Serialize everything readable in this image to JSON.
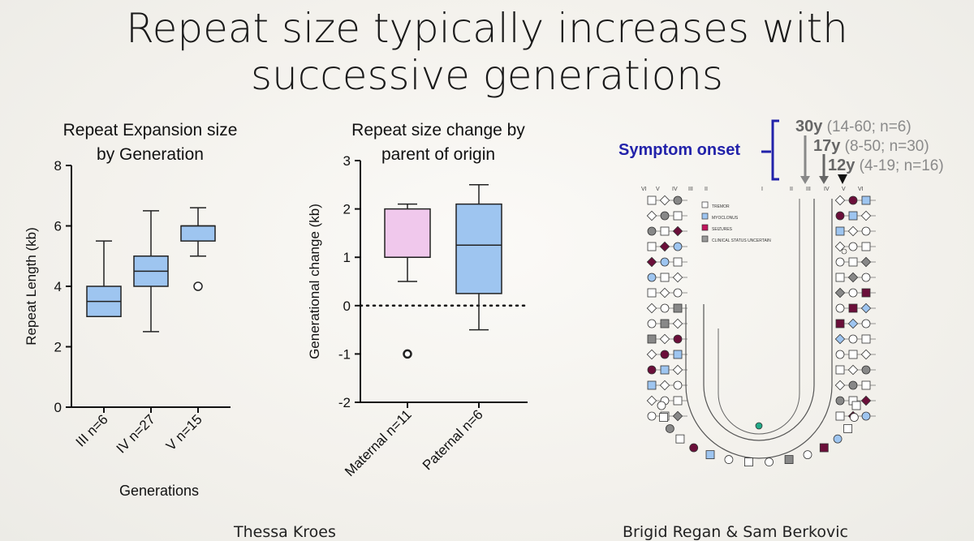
{
  "slide": {
    "title_line1": "Repeat size typically increases with",
    "title_line2": "successive generations",
    "credit_left": "Thessa Kroes",
    "credit_right": "Brigid Regan & Sam Berkovic"
  },
  "chart_data": [
    {
      "type": "box",
      "title_line1": "Repeat Expansion size",
      "title_line2": "by Generation",
      "xlabel": "Generations",
      "ylabel": "Repeat Length (kb)",
      "ylim": [
        0,
        8
      ],
      "yticks": [
        "0",
        "2",
        "4",
        "6",
        "8"
      ],
      "fill": "#9ec5f0",
      "boxes": [
        {
          "label": "III n=6",
          "min": 3.0,
          "q1": 3.0,
          "median": 3.5,
          "q3": 4.0,
          "max": 5.5,
          "outliers": []
        },
        {
          "label": "IV n=27",
          "min": 2.5,
          "q1": 4.0,
          "median": 4.5,
          "q3": 5.0,
          "max": 6.5,
          "outliers": []
        },
        {
          "label": "V n=15",
          "min": 5.0,
          "q1": 5.5,
          "median": 6.0,
          "q3": 6.0,
          "max": 6.6,
          "outliers": [
            4.0
          ]
        }
      ]
    },
    {
      "type": "box",
      "title_line1": "Repeat size change by",
      "title_line2": "parent of origin",
      "xlabel": "",
      "ylabel": "Generational change (kb)",
      "ylim": [
        -2,
        3
      ],
      "yticks": [
        "-2",
        "-1",
        "0",
        "1",
        "2",
        "3"
      ],
      "reference_line": 0,
      "boxes": [
        {
          "label": "Maternal n=11",
          "fill": "#f0c8ec",
          "min": 0.5,
          "q1": 1.0,
          "median": 1.0,
          "q3": 2.0,
          "max": 2.1,
          "outliers": [
            -1.0
          ]
        },
        {
          "label": "Paternal n=6",
          "fill": "#9ec5f0",
          "min": -0.5,
          "q1": 0.25,
          "median": 1.25,
          "q3": 2.1,
          "max": 2.5,
          "outliers": []
        }
      ]
    }
  ],
  "pedigree": {
    "symptom_onset_label": "Symptom onset",
    "generation_labels_left": [
      "VI",
      "V",
      "IV",
      "III",
      "II",
      "I"
    ],
    "generation_labels_right": [
      "II",
      "III",
      "IV",
      "V",
      "VI"
    ],
    "onset_rows": [
      {
        "age": "30y",
        "detail": " (14-60; n=6)"
      },
      {
        "age": "17y",
        "detail": " (8-50; n=30)"
      },
      {
        "age": "12y",
        "detail": " (4-19; n=16)"
      }
    ],
    "legend": [
      "TREMOR",
      "MYOCLONUS",
      "SEIZURES",
      "CLINICAL STATUS UNCERTAIN"
    ]
  }
}
